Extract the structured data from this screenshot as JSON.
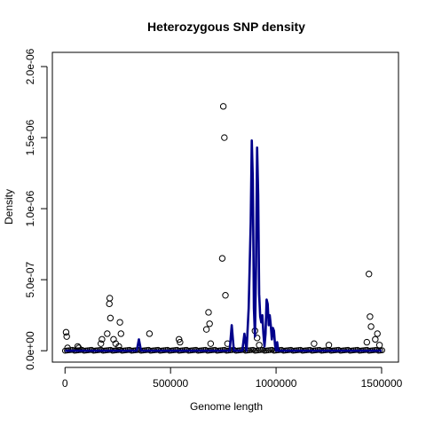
{
  "chart_data": {
    "type": "scatter",
    "title": "Heterozygous SNP density",
    "xlabel": "Genome length",
    "ylabel": "Density",
    "xlim": [
      -60000,
      1580000
    ],
    "ylim": [
      -8e-08,
      2.1e-06
    ],
    "x_ticks": [
      0,
      500000,
      1000000,
      1500000
    ],
    "x_tick_labels": [
      "0",
      "500000",
      "1000000",
      "1500000"
    ],
    "y_ticks": [
      0,
      5e-07,
      1e-06,
      1.5e-06,
      2e-06
    ],
    "y_tick_labels": [
      "0.0e+00",
      "5.0e-07",
      "1.0e-06",
      "1.5e-06",
      "2.0e-06"
    ],
    "grid": false,
    "series": [
      {
        "kind": "points",
        "marker": "open-circle",
        "color": "#000000",
        "x": [
          5000,
          8000,
          12000,
          60000,
          65000,
          170000,
          175000,
          200000,
          210000,
          212000,
          215000,
          230000,
          240000,
          255000,
          260000,
          265000,
          400000,
          540000,
          545000,
          670000,
          680000,
          685000,
          690000,
          745000,
          750000,
          755000,
          760000,
          770000,
          900000,
          910000,
          920000,
          1180000,
          1250000,
          1430000,
          1440000,
          1445000,
          1450000,
          1470000,
          1480000,
          1490000
        ],
        "y": [
          1.3e-07,
          1e-07,
          2e-08,
          3e-08,
          2e-08,
          5e-08,
          8e-08,
          1.2e-07,
          3.3e-07,
          3.7e-07,
          2.3e-07,
          8e-08,
          5e-08,
          3e-08,
          2e-07,
          1.2e-07,
          1.2e-07,
          8e-08,
          6e-08,
          1.5e-07,
          2.7e-07,
          1.9e-07,
          5e-08,
          6.5e-07,
          1.72e-06,
          1.5e-06,
          3.9e-07,
          5e-08,
          1.4e-07,
          9e-08,
          4e-08,
          5e-08,
          4e-08,
          6e-08,
          5.4e-07,
          2.4e-07,
          1.7e-07,
          8e-08,
          1.2e-07,
          4e-08
        ]
      },
      {
        "kind": "line",
        "color": "#00008b",
        "x": [
          0,
          340000,
          350000,
          360000,
          780000,
          790000,
          800000,
          840000,
          850000,
          860000,
          870000,
          880000,
          885000,
          890000,
          895000,
          900000,
          905000,
          910000,
          915000,
          920000,
          925000,
          930000,
          935000,
          940000,
          945000,
          950000,
          955000,
          960000,
          965000,
          970000,
          975000,
          980000,
          985000,
          990000,
          995000,
          1000000,
          1005000,
          1010000,
          1030000,
          1500000
        ],
        "y": [
          0,
          0,
          8e-08,
          0,
          0,
          1.8e-07,
          0,
          0,
          1.2e-07,
          0,
          3e-07,
          9e-07,
          1.48e-06,
          1.2e-06,
          3e-07,
          1e-07,
          6e-07,
          1.43e-06,
          1.1e-06,
          4e-07,
          2.4e-07,
          2e-07,
          2.5e-07,
          1.2e-07,
          3e-08,
          1.2e-07,
          3.6e-07,
          3.3e-07,
          1.8e-07,
          2.5e-07,
          1.8e-07,
          8e-08,
          1.6e-07,
          1.4e-07,
          4e-08,
          0,
          6e-08,
          0,
          0,
          0
        ]
      }
    ]
  }
}
